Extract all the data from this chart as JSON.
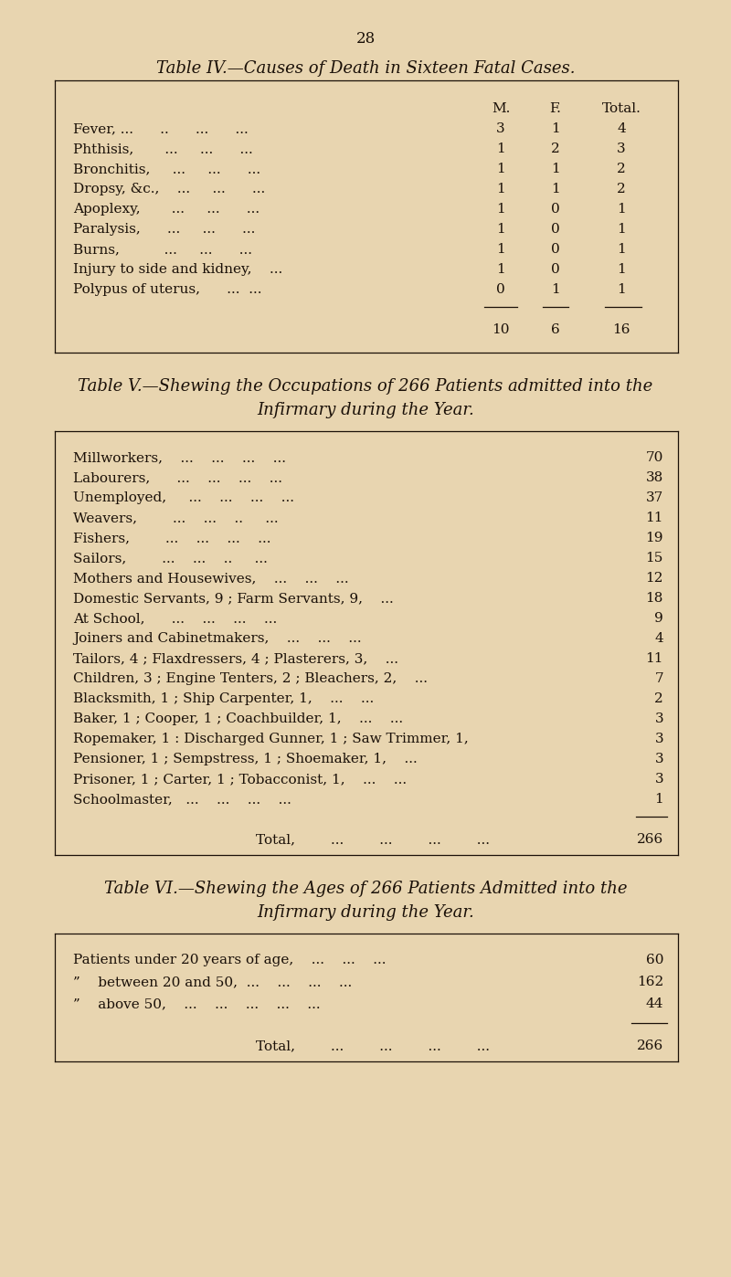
{
  "bg_color": "#e8d5b0",
  "text_color": "#1a1008",
  "page_num": "28",
  "table4": {
    "title": "Table IV.—Causes of Death in Sixteen Fatal Cases.",
    "rows": [
      [
        "Fever, ...      ..      ...      ...",
        "3",
        "1",
        "4"
      ],
      [
        "Phthisis,       ...     ...      ...",
        "1",
        "2",
        "3"
      ],
      [
        "Bronchitis,     ...     ...      ...",
        "1",
        "1",
        "2"
      ],
      [
        "Dropsy, &c.,    ...     ...      ...",
        "1",
        "1",
        "2"
      ],
      [
        "Apoplexy,       ...     ...      ...",
        "1",
        "0",
        "1"
      ],
      [
        "Paralysis,      ...     ...      ...",
        "1",
        "0",
        "1"
      ],
      [
        "Burns,          ...     ...      ...",
        "1",
        "0",
        "1"
      ],
      [
        "Injury to side and kidney,    ...",
        "1",
        "0",
        "1"
      ],
      [
        "Polypus of uterus,      ...  ...",
        "0",
        "1",
        "1"
      ]
    ],
    "totals": [
      "10",
      "6",
      "16"
    ],
    "col_m_label": "M.",
    "col_f_label": "F.",
    "col_tot_label": "Total."
  },
  "table5": {
    "title_line1": "Table V.—Shewing the Occupations of 266 Patients admitted into the",
    "title_line2": "Infirmary during the Year.",
    "rows": [
      [
        "Millworkers,    ...    ...    ...    ...",
        "70"
      ],
      [
        "Labourers,      ...    ...    ...    ...",
        "38"
      ],
      [
        "Unemployed,     ...    ...    ...    ...",
        "37"
      ],
      [
        "Weavers,        ...    ...    ..     ...",
        "11"
      ],
      [
        "Fishers,        ...    ...    ...    ...",
        "19"
      ],
      [
        "Sailors,        ...    ...    ..     ...",
        "15"
      ],
      [
        "Mothers and Housewives,    ...    ...    ...",
        "12"
      ],
      [
        "Domestic Servants, 9 ; Farm Servants, 9,    ...",
        "18"
      ],
      [
        "At School,      ...    ...    ...    ...",
        "9"
      ],
      [
        "Joiners and Cabinetmakers,    ...    ...    ...",
        "4"
      ],
      [
        "Tailors, 4 ; Flaxdressers, 4 ; Plasterers, 3,    ...",
        "11"
      ],
      [
        "Children, 3 ; Engine Tenters, 2 ; Bleachers, 2,    ...",
        "7"
      ],
      [
        "Blacksmith, 1 ; Ship Carpenter, 1,    ...    ...",
        "2"
      ],
      [
        "Baker, 1 ; Cooper, 1 ; Coachbuilder, 1,    ...    ...",
        "3"
      ],
      [
        "Ropemaker, 1 : Discharged Gunner, 1 ; Saw Trimmer, 1,",
        "3"
      ],
      [
        "Pensioner, 1 ; Sempstress, 1 ; Shoemaker, 1,    ...",
        "3"
      ],
      [
        "Prisoner, 1 ; Carter, 1 ; Tobacconist, 1,    ...    ...",
        "3"
      ],
      [
        "Schoolmaster,   ...    ...    ...    ...",
        "1"
      ]
    ],
    "total_label": "Total,",
    "total": "266"
  },
  "table6": {
    "title_line1": "Table VI.—Shewing the Ages of 266 Patients Admitted into the",
    "title_line2": "Infirmary during the Year.",
    "row1_label": "Patients under 20 years of age,",
    "row1_val": "60",
    "row2_prefix": "”",
    "row2_label": "between 20 and 50,  ...",
    "row2_val": "162",
    "row3_prefix": "”",
    "row3_label": "above 50,",
    "row3_val": "44",
    "total_label": "Total,",
    "total": "266"
  }
}
